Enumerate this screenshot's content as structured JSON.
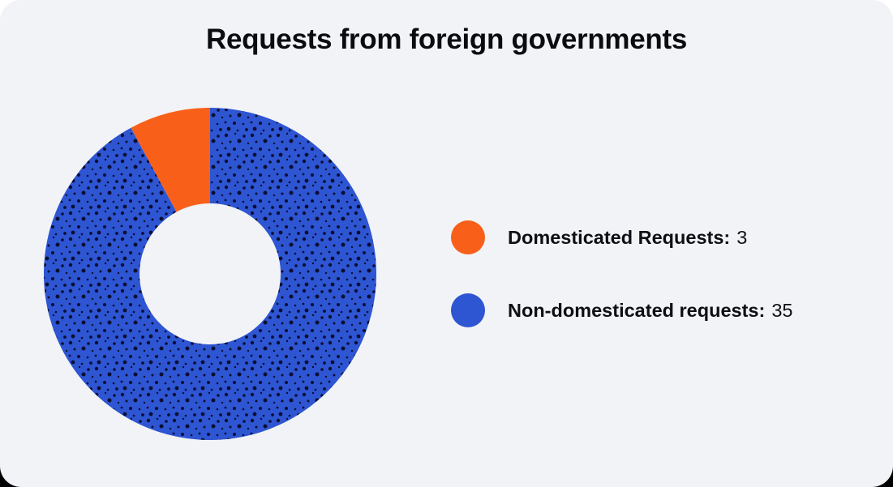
{
  "title": "Requests from foreign governments",
  "chart_data": {
    "type": "pie",
    "subtype": "donut",
    "title": "Requests from foreign governments",
    "categories": [
      "Domesticated Requests",
      "Non-domesticated requests"
    ],
    "values": [
      3,
      35
    ],
    "total": 38,
    "colors": [
      "#f8601a",
      "#2e55d2"
    ],
    "start_angle_deg": 0,
    "direction": "clockwise",
    "draw_order": [
      1,
      0
    ],
    "slice_angles_deg": {
      "Domesticated Requests": 28.42,
      "Non-domesticated requests": 331.58
    },
    "outer_radius_px": 205,
    "inner_radius_px": 87,
    "legend_position": "right",
    "texture_note": "blue slice filled with dark halftone dot pattern; orange slice solid"
  },
  "legend": {
    "items": [
      {
        "label": "Domesticated Requests:",
        "value": "3",
        "color": "#f8601a"
      },
      {
        "label": "Non-domesticated requests:",
        "value": "35",
        "color": "#2e55d2"
      }
    ]
  },
  "colors": {
    "card_background": "#f2f3f6",
    "page_top": "#ffffff",
    "page_bottom": "#000000",
    "title_text": "#0b0c10",
    "legend_text": "#0e0f14",
    "orange": "#f8601a",
    "blue": "#2e55d2",
    "texture_dot": "#0a0e33"
  }
}
